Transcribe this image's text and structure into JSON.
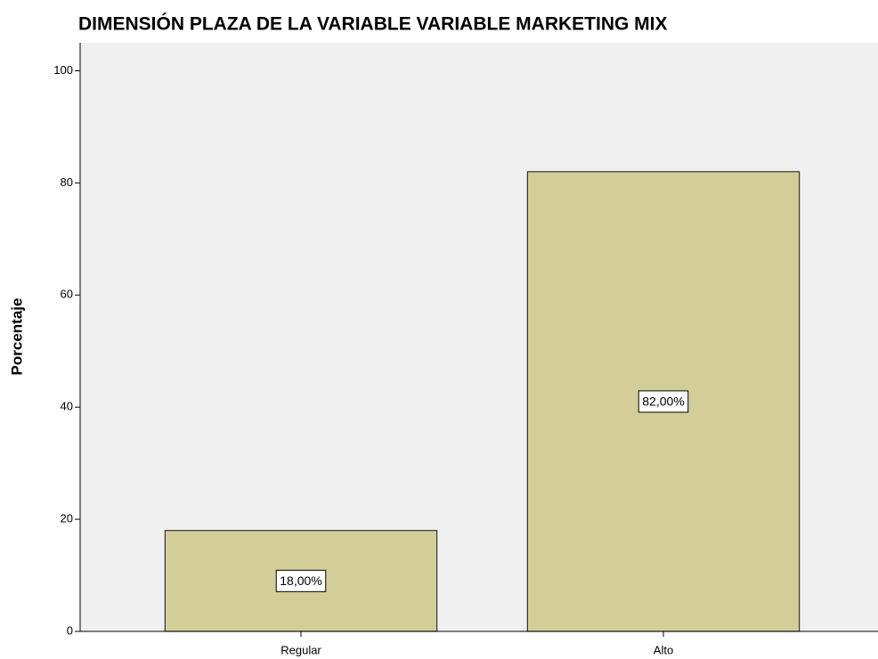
{
  "chart_data": {
    "type": "bar",
    "title": "DIMENSIÓN PLAZA DE LA VARIABLE VARIABLE MARKETING MIX",
    "y_label": "Porcentaje",
    "categories": [
      "Regular",
      "Alto"
    ],
    "values": [
      18,
      82
    ],
    "value_labels": [
      "18,00%",
      "82,00%"
    ],
    "color": "#d3ce97",
    "ylim": [
      0,
      105
    ],
    "yticks": [
      0,
      20,
      40,
      60,
      80,
      100
    ],
    "grid": false
  }
}
